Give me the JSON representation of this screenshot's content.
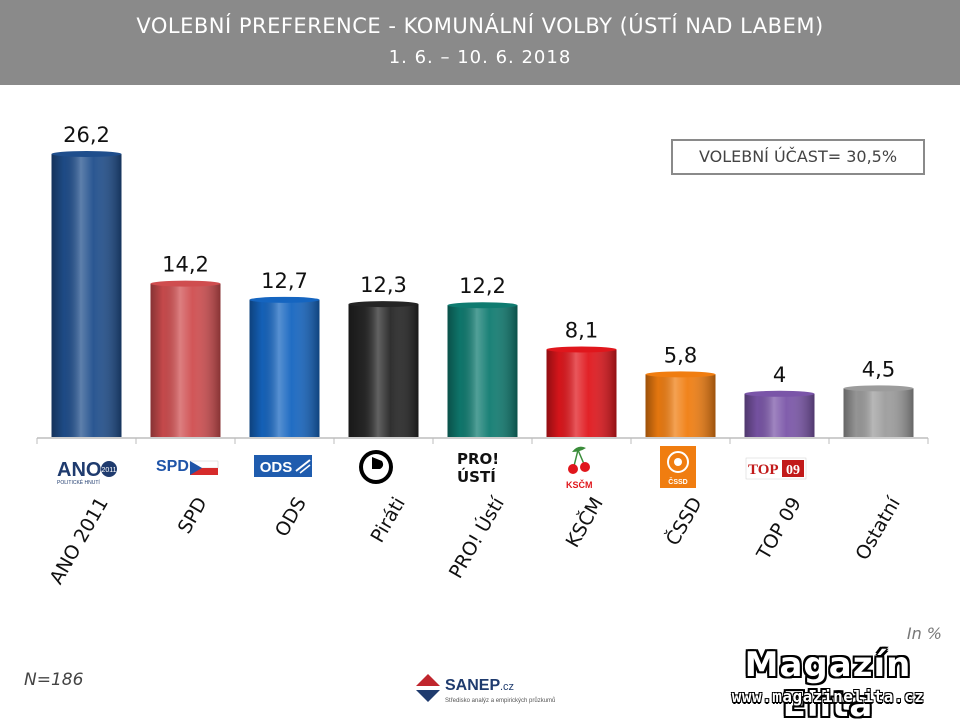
{
  "header": {
    "title": "VOLEBNÍ PREFERENCE - KOMUNÁLNÍ VOLBY (ÚSTÍ NAD LABEM)",
    "subtitle": "1. 6. – 10. 6. 2018"
  },
  "turnout_label": "VOLEBNÍ ÚČAST= 30,5%",
  "unit_label": "In %",
  "sample_label": "N=186",
  "sanep": {
    "name": "SANEP",
    "suffix": ".cz",
    "tagline": "Středisko analýz a empirických průzkumů"
  },
  "brand": {
    "name": "Magazín Elita",
    "url": "www.magazinelita.cz"
  },
  "logos": {
    "ano": {
      "text": "ANO",
      "badge": "2011",
      "caption": "POLITICKÉ HNUTÍ"
    },
    "spd": {
      "text": "SPD"
    },
    "ods": {
      "text": "ODS"
    },
    "pro": {
      "line1": "PRO!",
      "line2": "ÚSTÍ"
    },
    "kscm": {
      "text": "KSČM"
    },
    "cssd": {
      "text": "ČSSD"
    },
    "top09": {
      "text": "TOP",
      "num": "09"
    }
  },
  "chart_data": {
    "type": "bar",
    "categories": [
      "ANO 2011",
      "SPD",
      "ODS",
      "Piráti",
      "PRO! Ústí",
      "KSČM",
      "ČSSD",
      "TOP 09",
      "Ostatní"
    ],
    "values": [
      26.2,
      14.2,
      12.7,
      12.3,
      12.2,
      8.1,
      5.8,
      4,
      4.5
    ],
    "value_labels": [
      "26,2",
      "14,2",
      "12,7",
      "12,3",
      "12,2",
      "8,1",
      "5,8",
      "4",
      "4,5"
    ],
    "colors": [
      "#1f4e8c",
      "#cf4d4f",
      "#1565c0",
      "#252525",
      "#0f7b70",
      "#e0161c",
      "#f07d10",
      "#7a55a8",
      "#9c9c9c"
    ],
    "icons": [
      "ano-logo-icon",
      "spd-logo-icon",
      "ods-logo-icon",
      "pirati-logo-icon",
      "pro-usti-logo-icon",
      "kscm-logo-icon",
      "cssd-logo-icon",
      "top09-logo-icon",
      ""
    ],
    "ylim": [
      0,
      26.2
    ],
    "grid": false,
    "legend": "none"
  }
}
